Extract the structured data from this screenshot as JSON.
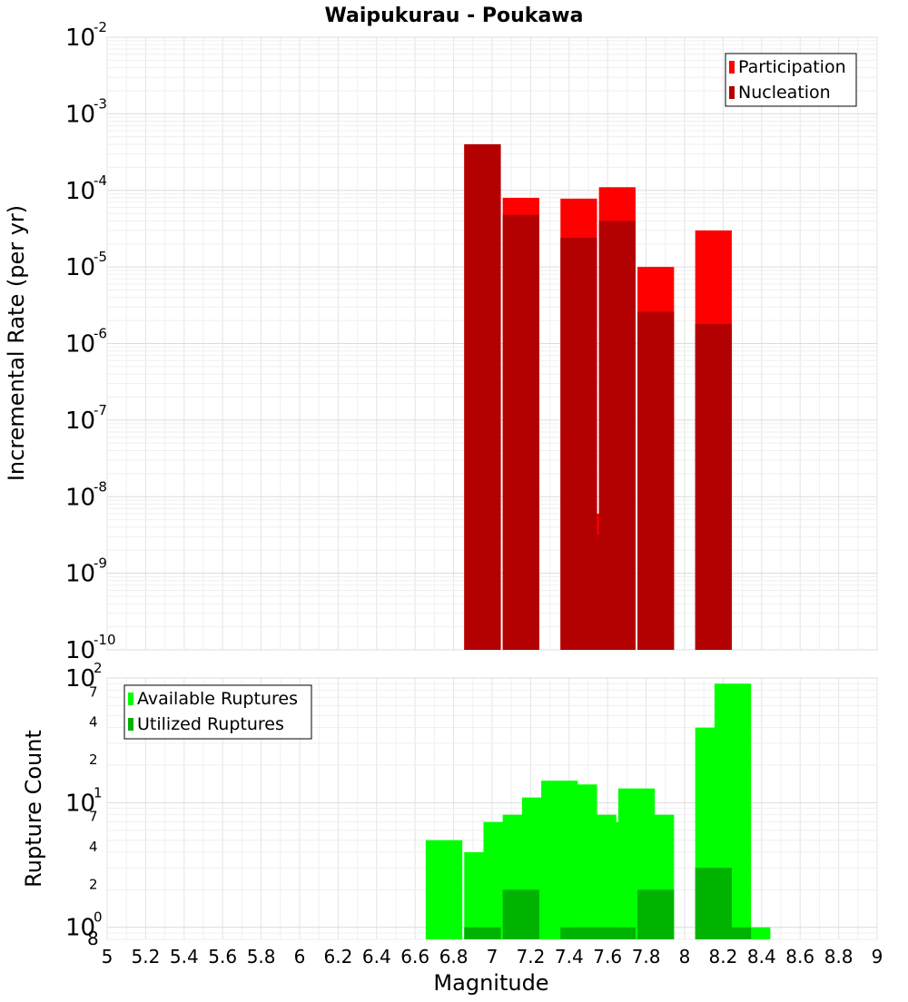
{
  "title": "Waipukurau - Poukawa",
  "xlabel": "Magnitude",
  "x_ticks": [
    "5",
    "5.2",
    "5.4",
    "5.6",
    "5.8",
    "6",
    "6.2",
    "6.4",
    "6.6",
    "6.8",
    "7",
    "7.2",
    "7.4",
    "7.6",
    "7.8",
    "8",
    "8.2",
    "8.4",
    "8.6",
    "8.8",
    "9"
  ],
  "chart_data": [
    {
      "type": "bar",
      "scale": "log",
      "ylabel": "Incremental Rate (per yr)",
      "xlim": [
        5,
        9
      ],
      "ylim": [
        1e-10,
        0.01
      ],
      "y_tick_labels": [
        {
          "base": "10",
          "exp": "-10"
        },
        {
          "base": "10",
          "exp": "-9"
        },
        {
          "base": "10",
          "exp": "-8"
        },
        {
          "base": "10",
          "exp": "-7"
        },
        {
          "base": "10",
          "exp": "-6"
        },
        {
          "base": "10",
          "exp": "-5"
        },
        {
          "base": "10",
          "exp": "-4"
        },
        {
          "base": "10",
          "exp": "-3"
        },
        {
          "base": "10",
          "exp": "-2"
        }
      ],
      "legend_position": "top-right",
      "series": [
        {
          "name": "Participation",
          "color": "#ff0000",
          "points": [
            [
              6.95,
              0.0004
            ],
            [
              7.15,
              8e-05
            ],
            [
              7.45,
              7.8e-05
            ],
            [
              7.55,
              6e-09
            ],
            [
              7.65,
              0.00011
            ],
            [
              7.85,
              1e-05
            ],
            [
              8.15,
              3e-05
            ]
          ]
        },
        {
          "name": "Nucleation",
          "color": "#b30000",
          "points": [
            [
              6.95,
              0.0004
            ],
            [
              7.15,
              4.8e-05
            ],
            [
              7.45,
              2.4e-05
            ],
            [
              7.55,
              3.2e-09
            ],
            [
              7.65,
              4e-05
            ],
            [
              7.85,
              2.6e-06
            ],
            [
              8.15,
              1.8e-06
            ]
          ]
        }
      ]
    },
    {
      "type": "bar",
      "scale": "log",
      "ylabel": "Rupture Count",
      "xlim": [
        5,
        9
      ],
      "ylim": [
        0.8,
        100
      ],
      "y_tick_labels": [
        {
          "base": "10",
          "exp": "0"
        },
        {
          "base": "10",
          "exp": "1"
        },
        {
          "base": "10",
          "exp": "2"
        }
      ],
      "y_minor_labels": [
        {
          "value": 0.8,
          "label": "8"
        },
        {
          "value": 2,
          "label": "2"
        },
        {
          "value": 4,
          "label": "4"
        },
        {
          "value": 7,
          "label": "7"
        },
        {
          "value": 20,
          "label": "2"
        },
        {
          "value": 40,
          "label": "4"
        },
        {
          "value": 70,
          "label": "7"
        }
      ],
      "legend_position": "top-left",
      "series": [
        {
          "name": "Available Ruptures",
          "color": "#00ff00",
          "points": [
            [
              6.75,
              5
            ],
            [
              6.95,
              4
            ],
            [
              7.05,
              7
            ],
            [
              7.15,
              8
            ],
            [
              7.25,
              11
            ],
            [
              7.35,
              15
            ],
            [
              7.45,
              14
            ],
            [
              7.55,
              8
            ],
            [
              7.65,
              7
            ],
            [
              7.75,
              13
            ],
            [
              7.85,
              8
            ],
            [
              8.15,
              40
            ],
            [
              8.25,
              90
            ],
            [
              8.35,
              1
            ]
          ]
        },
        {
          "name": "Utilized Ruptures",
          "color": "#00b300",
          "points": [
            [
              6.95,
              1
            ],
            [
              7.15,
              2
            ],
            [
              7.45,
              1
            ],
            [
              7.55,
              1
            ],
            [
              7.65,
              1
            ],
            [
              7.85,
              2
            ],
            [
              8.15,
              3
            ],
            [
              8.25,
              1
            ]
          ]
        }
      ]
    }
  ]
}
